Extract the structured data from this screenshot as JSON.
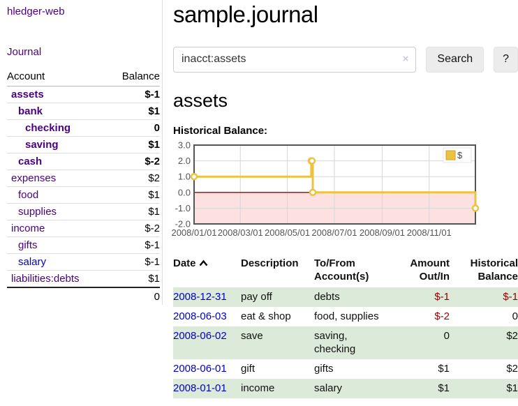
{
  "sidebar": {
    "app_title": "hledger-web",
    "nav": {
      "journal": "Journal"
    },
    "accounts": {
      "col_account": "Account",
      "col_balance": "Balance",
      "rows": [
        {
          "name": "assets",
          "level": 1,
          "current": true,
          "balance": "$-1",
          "neg": "strong"
        },
        {
          "name": "bank",
          "level": 2,
          "current": true,
          "balance": "$1",
          "neg": ""
        },
        {
          "name": "checking",
          "level": 3,
          "current": true,
          "balance": "0",
          "neg": ""
        },
        {
          "name": "saving",
          "level": 3,
          "current": true,
          "balance": "$1",
          "neg": ""
        },
        {
          "name": "cash",
          "level": 2,
          "current": true,
          "balance": "$-2",
          "neg": "strong"
        },
        {
          "name": "expenses",
          "level": 1,
          "current": false,
          "balance": "$2",
          "neg": ""
        },
        {
          "name": "food",
          "level": 2,
          "current": false,
          "balance": "$1",
          "neg": ""
        },
        {
          "name": "supplies",
          "level": 2,
          "current": false,
          "balance": "$1",
          "neg": ""
        },
        {
          "name": "income",
          "level": 1,
          "current": false,
          "balance": "$-2",
          "neg": "soft"
        },
        {
          "name": "gifts",
          "level": 2,
          "current": false,
          "balance": "$-1",
          "neg": "soft"
        },
        {
          "name": "salary",
          "level": 2,
          "current": false,
          "balance": "$-1",
          "neg": "soft",
          "link_blue": true
        },
        {
          "name": "liabilities:debts",
          "level": 1,
          "current": false,
          "balance": "$1",
          "neg": ""
        }
      ],
      "total": "0"
    }
  },
  "main": {
    "title": "sample.journal",
    "search": {
      "value": "inacct:assets",
      "button": "Search",
      "help": "?",
      "clear_icon": "×"
    },
    "account_heading": "assets",
    "register": {
      "headers": {
        "date": "Date",
        "description": "Description",
        "tofrom": "To/From Account(s)",
        "amount": "Amount Out/In",
        "balance": "Historical Balance"
      },
      "rows": [
        {
          "date": "2008-12-31",
          "description": "pay off",
          "accounts": [
            "debts"
          ],
          "amount": "$-1",
          "amount_neg": true,
          "balance": "$-1",
          "balance_neg": true
        },
        {
          "date": "2008-06-03",
          "description": "eat & shop",
          "accounts": [
            "food",
            "supplies"
          ],
          "amount": "$-2",
          "amount_neg": true,
          "balance": "0",
          "balance_neg": false
        },
        {
          "date": "2008-06-02",
          "description": "save",
          "accounts": [
            "saving",
            "checking"
          ],
          "amount": "0",
          "amount_neg": false,
          "balance": "$2",
          "balance_neg": false
        },
        {
          "date": "2008-06-01",
          "description": "gift",
          "accounts": [
            "gifts"
          ],
          "amount": "$1",
          "amount_neg": false,
          "balance": "$2",
          "balance_neg": false
        },
        {
          "date": "2008-01-01",
          "description": "income",
          "accounts": [
            "salary"
          ],
          "amount": "$1",
          "amount_neg": false,
          "balance": "$1",
          "balance_neg": false
        }
      ]
    }
  },
  "chart_data": {
    "type": "line",
    "step": true,
    "title": "Historical Balance:",
    "series": [
      {
        "name": "$",
        "color": "#edc240",
        "points": [
          [
            "2008-01-01",
            1
          ],
          [
            "2008-06-01",
            2
          ],
          [
            "2008-06-02",
            2
          ],
          [
            "2008-06-03",
            0
          ],
          [
            "2008-12-31",
            -1
          ]
        ]
      }
    ],
    "xrange": [
      "2008-01-01",
      "2008-12-31"
    ],
    "ylim": [
      -2,
      3
    ],
    "yticks": [
      3.0,
      2.0,
      1.0,
      0.0,
      -1.0,
      -2.0
    ],
    "ytick_labels": [
      "3.0",
      "2.0",
      "1.0",
      "0.0",
      "-1.0",
      "-2.0"
    ],
    "xtick_labels": [
      "2008/01/01",
      "2008/03/01",
      "2008/05/01",
      "2008/07/01",
      "2008/09/01",
      "2008/11/01"
    ],
    "legend_position": "top-right",
    "grid": true,
    "negative_region_fill": "#fde1e1",
    "zero_line_color": "#a40000",
    "gridline_color": "#d6d6d6",
    "border_color": "#545454",
    "axis_text_color": "#545454"
  }
}
